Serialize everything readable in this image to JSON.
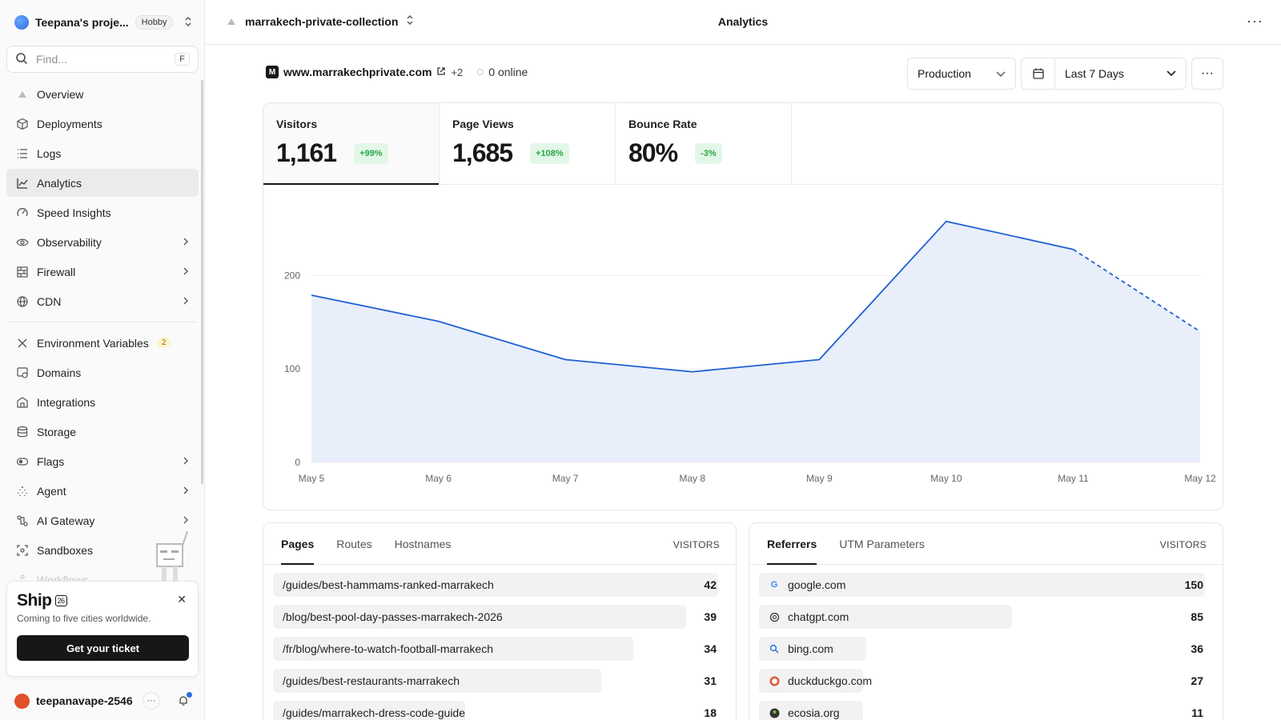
{
  "sidebar": {
    "team_name": "Teepana's proje...",
    "plan_badge": "Hobby",
    "search_placeholder": "Find...",
    "search_shortcut": "F",
    "items": [
      {
        "label": "Overview",
        "icon": "triangle-icon",
        "chevron": false
      },
      {
        "label": "Deployments",
        "icon": "cube-icon",
        "chevron": false
      },
      {
        "label": "Logs",
        "icon": "list-icon",
        "chevron": false
      },
      {
        "label": "Analytics",
        "icon": "chart-line-icon",
        "chevron": false,
        "active": true
      },
      {
        "label": "Speed Insights",
        "icon": "gauge-icon",
        "chevron": false
      },
      {
        "label": "Observability",
        "icon": "eye-icon",
        "chevron": true
      },
      {
        "label": "Firewall",
        "icon": "firewall-icon",
        "chevron": true
      },
      {
        "label": "CDN",
        "icon": "globe-icon",
        "chevron": true
      }
    ],
    "items2": [
      {
        "label": "Environment Variables",
        "icon": "variables-icon",
        "chevron": false,
        "badge": "2"
      },
      {
        "label": "Domains",
        "icon": "domains-icon",
        "chevron": false
      },
      {
        "label": "Integrations",
        "icon": "integrations-icon",
        "chevron": false
      },
      {
        "label": "Storage",
        "icon": "database-icon",
        "chevron": false
      },
      {
        "label": "Flags",
        "icon": "toggle-icon",
        "chevron": true
      },
      {
        "label": "Agent",
        "icon": "sparkle-icon",
        "chevron": true
      },
      {
        "label": "AI Gateway",
        "icon": "gateway-icon",
        "chevron": true
      },
      {
        "label": "Sandboxes",
        "icon": "sandbox-icon",
        "chevron": false
      },
      {
        "label": "Workflows",
        "icon": "workflow-icon",
        "chevron": false,
        "faded": true
      }
    ],
    "ship": {
      "title": "Ship",
      "edition": "26",
      "subtitle": "Coming to five cities worldwide.",
      "button": "Get your ticket"
    },
    "user_name": "teepanavape-2546"
  },
  "topbar": {
    "project": "marrakech-private-collection",
    "title": "Analytics"
  },
  "domain": {
    "name": "www.marrakechprivate.com",
    "extra": "+2",
    "online": "0 online"
  },
  "filters": {
    "environment": "Production",
    "range": "Last 7 Days"
  },
  "metrics": [
    {
      "label": "Visitors",
      "value": "1,161",
      "delta": "+99%",
      "active": true
    },
    {
      "label": "Page Views",
      "value": "1,685",
      "delta": "+108%",
      "active": false
    },
    {
      "label": "Bounce Rate",
      "value": "80%",
      "delta": "-3%",
      "active": false
    }
  ],
  "chart_data": {
    "type": "area",
    "x": [
      "May 5",
      "May 6",
      "May 7",
      "May 8",
      "May 9",
      "May 10",
      "May 11",
      "May 12"
    ],
    "series": [
      {
        "values": [
          179,
          151,
          110,
          97,
          110,
          258,
          228,
          140
        ]
      }
    ],
    "yticks": [
      0,
      100,
      200
    ],
    "ylim": [
      0,
      280
    ],
    "projected_last_segment": true,
    "line_color": "#1f5fd1",
    "fill_color": "#e8eefa"
  },
  "pages_panel": {
    "tabs": [
      "Pages",
      "Routes",
      "Hostnames"
    ],
    "column": "VISITORS",
    "rows": [
      {
        "label": "/guides/best-hammams-ranked-marrakech",
        "value": 42
      },
      {
        "label": "/blog/best-pool-day-passes-marrakech-2026",
        "value": 39
      },
      {
        "label": "/fr/blog/where-to-watch-football-marrakech",
        "value": 34
      },
      {
        "label": "/guides/best-restaurants-marrakech",
        "value": 31
      },
      {
        "label": "/guides/marrakech-dress-code-guide",
        "value": 18
      }
    ]
  },
  "referrers_panel": {
    "tabs": [
      "Referrers",
      "UTM Parameters"
    ],
    "column": "VISITORS",
    "rows": [
      {
        "label": "google.com",
        "value": 150,
        "icon": "google-icon"
      },
      {
        "label": "chatgpt.com",
        "value": 85,
        "icon": "openai-icon"
      },
      {
        "label": "bing.com",
        "value": 36,
        "icon": "bing-icon"
      },
      {
        "label": "duckduckgo.com",
        "value": 27,
        "icon": "duckduckgo-icon"
      },
      {
        "label": "ecosia.org",
        "value": 11,
        "icon": "ecosia-icon"
      }
    ]
  }
}
